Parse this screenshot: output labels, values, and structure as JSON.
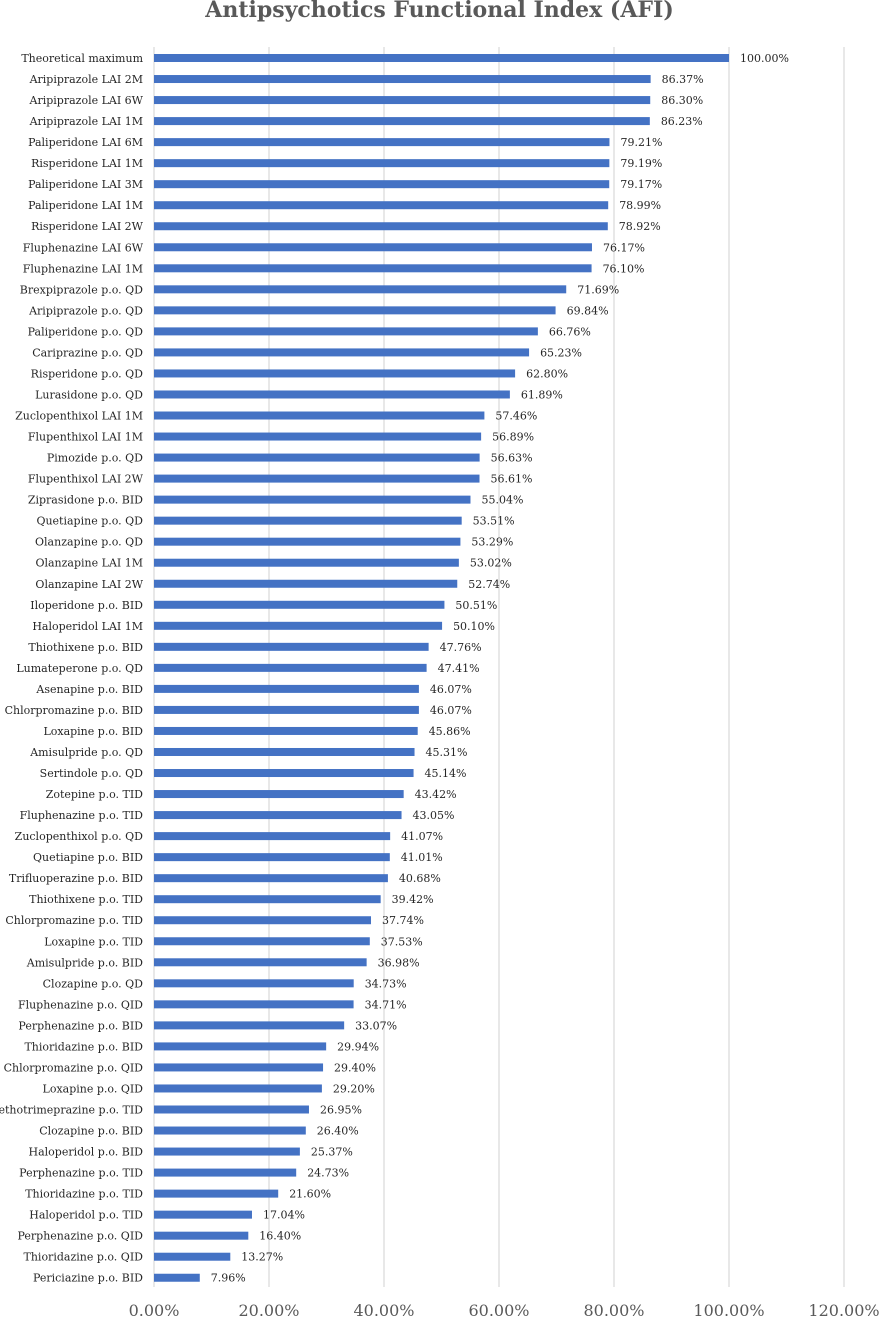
{
  "chart_data": {
    "type": "bar",
    "orientation": "horizontal",
    "title": "Antipsychotics Functional Index (AFI)",
    "xlabel": "",
    "ylabel": "",
    "xlim": [
      0,
      120
    ],
    "x_ticks": [
      "0.00%",
      "20.00%",
      "40.00%",
      "60.00%",
      "80.00%",
      "100.00%",
      "120.00%"
    ],
    "grid": "vertical",
    "legend": "none",
    "bar_color": "#4472C4",
    "categories": [
      "Theoretical maximum",
      "Aripiprazole LAI 2M",
      "Aripiprazole LAI 6W",
      "Aripiprazole LAI 1M",
      "Paliperidone LAI 6M",
      "Risperidone LAI 1M",
      "Paliperidone LAI 3M",
      "Paliperidone LAI 1M",
      "Risperidone LAI 2W",
      "Fluphenazine LAI 6W",
      "Fluphenazine LAI 1M",
      "Brexpiprazole p.o. QD",
      "Aripiprazole p.o. QD",
      "Paliperidone p.o. QD",
      "Cariprazine p.o. QD",
      "Risperidone p.o. QD",
      "Lurasidone p.o. QD",
      "Zuclopenthixol LAI 1M",
      "Flupenthixol LAI 1M",
      "Pimozide p.o. QD",
      "Flupenthixol LAI 2W",
      "Ziprasidone p.o. BID",
      "Quetiapine p.o. QD",
      "Olanzapine p.o. QD",
      "Olanzapine LAI 1M",
      "Olanzapine LAI 2W",
      "Iloperidone p.o. BID",
      "Haloperidol LAI 1M",
      "Thiothixene p.o. BID",
      "Lumateperone p.o. QD",
      "Asenapine p.o. BID",
      "Chlorpromazine p.o. BID",
      "Loxapine p.o. BID",
      "Amisulpride p.o. QD",
      "Sertindole p.o. QD",
      "Zotepine p.o. TID",
      "Fluphenazine p.o. TID",
      "Zuclopenthixol p.o. QD",
      "Quetiapine p.o. BID",
      "Trifluoperazine p.o. BID",
      "Thiothixene p.o. TID",
      "Chlorpromazine p.o. TID",
      "Loxapine p.o. TID",
      "Amisulpride p.o. BID",
      "Clozapine p.o. QD",
      "Fluphenazine p.o. QID",
      "Perphenazine p.o. BID",
      "Thioridazine p.o. BID",
      "Chlorpromazine p.o. QID",
      "Loxapine p.o. QID",
      "Methotrimeprazine p.o. TID",
      "Clozapine p.o. BID",
      "Haloperidol p.o. BID",
      "Perphenazine p.o. TID",
      "Thioridazine p.o. TID",
      "Haloperidol p.o. TID",
      "Perphenazine p.o. QID",
      "Thioridazine p.o. QID",
      "Periciazine p.o. BID"
    ],
    "values": [
      100.0,
      86.37,
      86.3,
      86.23,
      79.21,
      79.19,
      79.17,
      78.99,
      78.92,
      76.17,
      76.1,
      71.69,
      69.84,
      66.76,
      65.23,
      62.8,
      61.89,
      57.46,
      56.89,
      56.63,
      56.61,
      55.04,
      53.51,
      53.29,
      53.02,
      52.74,
      50.51,
      50.1,
      47.76,
      47.41,
      46.07,
      46.07,
      45.86,
      45.31,
      45.14,
      43.42,
      43.05,
      41.07,
      41.01,
      40.68,
      39.42,
      37.74,
      37.53,
      36.98,
      34.73,
      34.71,
      33.07,
      29.94,
      29.4,
      29.2,
      26.95,
      26.4,
      25.37,
      24.73,
      21.6,
      17.04,
      16.4,
      13.27,
      7.96
    ],
    "data_labels": [
      "100.00%",
      "86.37%",
      "86.30%",
      "86.23%",
      "79.21%",
      "79.19%",
      "79.17%",
      "78.99%",
      "78.92%",
      "76.17%",
      "76.10%",
      "71.69%",
      "69.84%",
      "66.76%",
      "65.23%",
      "62.80%",
      "61.89%",
      "57.46%",
      "56.89%",
      "56.63%",
      "56.61%",
      "55.04%",
      "53.51%",
      "53.29%",
      "53.02%",
      "52.74%",
      "50.51%",
      "50.10%",
      "47.76%",
      "47.41%",
      "46.07%",
      "46.07%",
      "45.86%",
      "45.31%",
      "45.14%",
      "43.42%",
      "43.05%",
      "41.07%",
      "41.01%",
      "40.68%",
      "39.42%",
      "37.74%",
      "37.53%",
      "36.98%",
      "34.73%",
      "34.71%",
      "33.07%",
      "29.94%",
      "29.40%",
      "29.20%",
      "26.95%",
      "26.40%",
      "25.37%",
      "24.73%",
      "21.60%",
      "17.04%",
      "16.40%",
      "13.27%",
      "7.96%"
    ]
  }
}
